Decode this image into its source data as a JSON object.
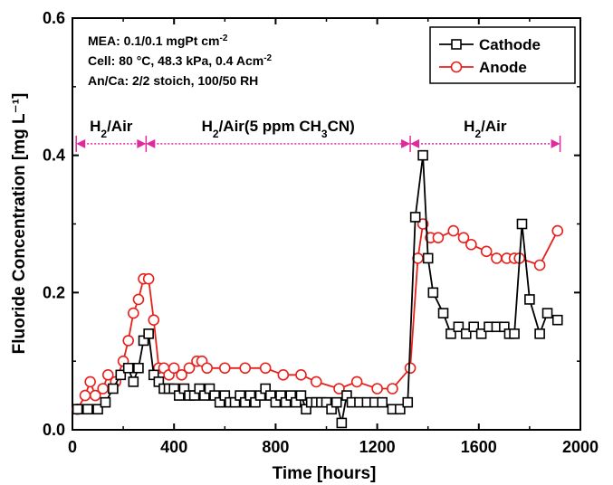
{
  "chart_data": {
    "type": "line",
    "xlabel": "Time [hours]",
    "ylabel": "Fluoride Concentration [mg L⁻¹]",
    "xlim": [
      0,
      2000
    ],
    "ylim": [
      0,
      0.6
    ],
    "xticks": [
      "0",
      "400",
      "800",
      "1200",
      "1600",
      "2000"
    ],
    "yticks": [
      "0.0",
      "0.2",
      "0.4",
      "0.6"
    ],
    "grid": false,
    "legend_position": "top-right",
    "info_lines": [
      {
        "text": "MEA: 0.1/0.1 mgPt cm",
        "sup": "-2"
      },
      {
        "text": "Cell: 80 °C, 48.3 kPa, 0.4 Acm",
        "sup": "-2"
      },
      {
        "text": "An/Ca: 2/2 stoich, 100/50 RH",
        "sup": ""
      }
    ],
    "regions": [
      {
        "label_html": "H<tspan baseline-shift=\"sub\" font-size=\"12\">2</tspan>/Air",
        "label": "H2/Air",
        "x_start": 15,
        "x_end": 290
      },
      {
        "label_html": "H<tspan baseline-shift=\"sub\" font-size=\"12\">2</tspan>/Air(5 ppm CH<tspan baseline-shift=\"sub\" font-size=\"12\">3</tspan>CN)",
        "label": "H2/Air(5 ppm CH3CN)",
        "x_start": 290,
        "x_end": 1330
      },
      {
        "label_html": "H<tspan baseline-shift=\"sub\" font-size=\"12\">2</tspan>/Air",
        "label": "H2/Air",
        "x_start": 1330,
        "x_end": 1920
      }
    ],
    "region_y": 0.43,
    "series": [
      {
        "name": "Cathode",
        "color": "#000000",
        "marker": "square",
        "points": [
          [
            20,
            0.03
          ],
          [
            60,
            0.03
          ],
          [
            100,
            0.03
          ],
          [
            130,
            0.04
          ],
          [
            160,
            0.06
          ],
          [
            190,
            0.08
          ],
          [
            220,
            0.09
          ],
          [
            240,
            0.07
          ],
          [
            260,
            0.09
          ],
          [
            280,
            0.13
          ],
          [
            300,
            0.14
          ],
          [
            320,
            0.08
          ],
          [
            340,
            0.07
          ],
          [
            360,
            0.06
          ],
          [
            380,
            0.06
          ],
          [
            400,
            0.06
          ],
          [
            420,
            0.05
          ],
          [
            440,
            0.06
          ],
          [
            460,
            0.05
          ],
          [
            480,
            0.05
          ],
          [
            500,
            0.06
          ],
          [
            520,
            0.05
          ],
          [
            540,
            0.06
          ],
          [
            560,
            0.05
          ],
          [
            580,
            0.04
          ],
          [
            600,
            0.05
          ],
          [
            620,
            0.04
          ],
          [
            640,
            0.04
          ],
          [
            660,
            0.05
          ],
          [
            680,
            0.04
          ],
          [
            700,
            0.05
          ],
          [
            720,
            0.04
          ],
          [
            740,
            0.05
          ],
          [
            760,
            0.06
          ],
          [
            780,
            0.05
          ],
          [
            800,
            0.04
          ],
          [
            820,
            0.05
          ],
          [
            840,
            0.04
          ],
          [
            860,
            0.05
          ],
          [
            880,
            0.04
          ],
          [
            900,
            0.05
          ],
          [
            920,
            0.03
          ],
          [
            940,
            0.04
          ],
          [
            960,
            0.04
          ],
          [
            980,
            0.04
          ],
          [
            1000,
            0.04
          ],
          [
            1020,
            0.03
          ],
          [
            1040,
            0.04
          ],
          [
            1060,
            0.01
          ],
          [
            1080,
            0.05
          ],
          [
            1100,
            0.04
          ],
          [
            1130,
            0.04
          ],
          [
            1160,
            0.04
          ],
          [
            1190,
            0.04
          ],
          [
            1220,
            0.04
          ],
          [
            1260,
            0.03
          ],
          [
            1290,
            0.03
          ],
          [
            1320,
            0.04
          ],
          [
            1350,
            0.31
          ],
          [
            1380,
            0.4
          ],
          [
            1400,
            0.25
          ],
          [
            1420,
            0.2
          ],
          [
            1460,
            0.17
          ],
          [
            1490,
            0.14
          ],
          [
            1520,
            0.15
          ],
          [
            1550,
            0.14
          ],
          [
            1580,
            0.15
          ],
          [
            1610,
            0.14
          ],
          [
            1640,
            0.15
          ],
          [
            1670,
            0.15
          ],
          [
            1700,
            0.15
          ],
          [
            1720,
            0.14
          ],
          [
            1740,
            0.14
          ],
          [
            1770,
            0.3
          ],
          [
            1800,
            0.19
          ],
          [
            1840,
            0.14
          ],
          [
            1870,
            0.17
          ],
          [
            1910,
            0.16
          ]
        ]
      },
      {
        "name": "Anode",
        "color": "#e8201c",
        "marker": "circle",
        "points": [
          [
            20,
            0.03
          ],
          [
            50,
            0.05
          ],
          [
            70,
            0.07
          ],
          [
            90,
            0.05
          ],
          [
            120,
            0.06
          ],
          [
            140,
            0.08
          ],
          [
            170,
            0.07
          ],
          [
            200,
            0.1
          ],
          [
            220,
            0.13
          ],
          [
            240,
            0.17
          ],
          [
            260,
            0.19
          ],
          [
            280,
            0.22
          ],
          [
            300,
            0.22
          ],
          [
            320,
            0.16
          ],
          [
            340,
            0.09
          ],
          [
            360,
            0.09
          ],
          [
            380,
            0.08
          ],
          [
            400,
            0.09
          ],
          [
            430,
            0.08
          ],
          [
            460,
            0.09
          ],
          [
            490,
            0.1
          ],
          [
            510,
            0.1
          ],
          [
            530,
            0.09
          ],
          [
            600,
            0.09
          ],
          [
            680,
            0.09
          ],
          [
            760,
            0.09
          ],
          [
            830,
            0.08
          ],
          [
            900,
            0.08
          ],
          [
            960,
            0.07
          ],
          [
            1050,
            0.06
          ],
          [
            1120,
            0.07
          ],
          [
            1200,
            0.06
          ],
          [
            1260,
            0.06
          ],
          [
            1330,
            0.09
          ],
          [
            1360,
            0.25
          ],
          [
            1380,
            0.3
          ],
          [
            1410,
            0.28
          ],
          [
            1440,
            0.28
          ],
          [
            1500,
            0.29
          ],
          [
            1540,
            0.28
          ],
          [
            1570,
            0.27
          ],
          [
            1630,
            0.26
          ],
          [
            1670,
            0.25
          ],
          [
            1710,
            0.25
          ],
          [
            1740,
            0.25
          ],
          [
            1760,
            0.25
          ],
          [
            1840,
            0.24
          ],
          [
            1910,
            0.29
          ]
        ]
      }
    ]
  }
}
